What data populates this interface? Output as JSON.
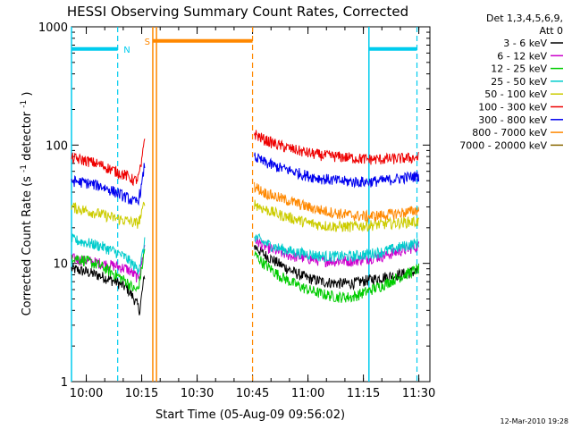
{
  "chart_data": {
    "type": "line",
    "title": "HESSI Observing Summary Count Rates, Corrected",
    "xlabel": "Start Time (05-Aug-09 09:56:02)",
    "ylabel_main": "Corrected Count Rate (s",
    "ylabel_sup1": "-1",
    "ylabel_mid": " detector",
    "ylabel_sup2": "-1",
    "ylabel_end": ")",
    "x_unit": "minutes after 09:56:02 UT",
    "xlim": [
      0,
      97
    ],
    "ylim": [
      1,
      1000
    ],
    "y_scale": "log",
    "x_ticks": [
      {
        "label": "10:00",
        "value": 4
      },
      {
        "label": "10:15",
        "value": 19
      },
      {
        "label": "10:30",
        "value": 34
      },
      {
        "label": "10:45",
        "value": 49
      },
      {
        "label": "11:00",
        "value": 64
      },
      {
        "label": "11:15",
        "value": 79
      },
      {
        "label": "11:30",
        "value": 94
      }
    ],
    "y_ticks": [
      {
        "label": "1",
        "value": 1
      },
      {
        "label": "10",
        "value": 10
      },
      {
        "label": "100",
        "value": 100
      },
      {
        "label": "1000",
        "value": 1000
      }
    ],
    "legend_header": [
      "Det 1,3,4,5,6,9,",
      "Att 0"
    ],
    "legend_position": "right",
    "data_gap": [
      23,
      49
    ],
    "series": [
      {
        "name": "3 - 6 keV",
        "color": "#000000",
        "before": [
          [
            0,
            9.0
          ],
          [
            4,
            8.5
          ],
          [
            8,
            7.8
          ],
          [
            12,
            7.0
          ],
          [
            15,
            6.2
          ],
          [
            17,
            5.0
          ],
          [
            18.5,
            4.0
          ],
          [
            19.2,
            6.0
          ],
          [
            19.8,
            8.0
          ]
        ],
        "after": [
          [
            49.5,
            14.0
          ],
          [
            52,
            12.0
          ],
          [
            56,
            10.0
          ],
          [
            60,
            8.5
          ],
          [
            64,
            7.5
          ],
          [
            68,
            7.0
          ],
          [
            72,
            6.8
          ],
          [
            76,
            6.8
          ],
          [
            80,
            7.2
          ],
          [
            84,
            7.6
          ],
          [
            88,
            8.0
          ],
          [
            92,
            8.4
          ],
          [
            94,
            8.6
          ]
        ]
      },
      {
        "name": "6 - 12 keV",
        "color": "#cc00cc",
        "before": [
          [
            0,
            11.0
          ],
          [
            4,
            10.5
          ],
          [
            8,
            10.0
          ],
          [
            12,
            9.5
          ],
          [
            15,
            9.0
          ],
          [
            17,
            8.0
          ],
          [
            18,
            7.5
          ],
          [
            19,
            10.0
          ],
          [
            19.8,
            14.0
          ]
        ],
        "after": [
          [
            49.5,
            16.0
          ],
          [
            52,
            14.0
          ],
          [
            56,
            12.5
          ],
          [
            60,
            11.5
          ],
          [
            64,
            11.0
          ],
          [
            68,
            10.5
          ],
          [
            72,
            10.5
          ],
          [
            76,
            10.5
          ],
          [
            80,
            11.0
          ],
          [
            84,
            11.5
          ],
          [
            88,
            12.5
          ],
          [
            92,
            13.5
          ],
          [
            94,
            14.0
          ]
        ]
      },
      {
        "name": "12 - 25 keV",
        "color": "#00cc00",
        "before": [
          [
            0,
            11.5
          ],
          [
            4,
            10.5
          ],
          [
            8,
            9.5
          ],
          [
            12,
            8.0
          ],
          [
            15,
            7.0
          ],
          [
            17,
            6.0
          ],
          [
            18,
            6.0
          ],
          [
            19,
            9.0
          ],
          [
            19.8,
            13.0
          ]
        ],
        "after": [
          [
            49.5,
            12.0
          ],
          [
            52,
            10.0
          ],
          [
            56,
            8.0
          ],
          [
            60,
            6.8
          ],
          [
            64,
            6.0
          ],
          [
            68,
            5.5
          ],
          [
            72,
            5.2
          ],
          [
            76,
            5.2
          ],
          [
            80,
            5.8
          ],
          [
            84,
            6.5
          ],
          [
            88,
            7.5
          ],
          [
            92,
            8.5
          ],
          [
            94,
            9.0
          ]
        ]
      },
      {
        "name": "25 - 50 keV",
        "color": "#00cccc",
        "before": [
          [
            0,
            16.0
          ],
          [
            4,
            15.0
          ],
          [
            8,
            14.0
          ],
          [
            12,
            12.5
          ],
          [
            15,
            11.0
          ],
          [
            17,
            9.5
          ],
          [
            18,
            9.0
          ],
          [
            19,
            11.0
          ],
          [
            19.8,
            15.0
          ]
        ],
        "after": [
          [
            49.5,
            17.0
          ],
          [
            52,
            15.0
          ],
          [
            56,
            13.5
          ],
          [
            60,
            12.5
          ],
          [
            64,
            12.0
          ],
          [
            68,
            11.5
          ],
          [
            72,
            11.5
          ],
          [
            76,
            11.5
          ],
          [
            80,
            12.0
          ],
          [
            84,
            12.5
          ],
          [
            88,
            13.5
          ],
          [
            92,
            14.5
          ],
          [
            94,
            15.0
          ]
        ]
      },
      {
        "name": "50 - 100 keV",
        "color": "#cccc00",
        "before": [
          [
            0,
            30.0
          ],
          [
            4,
            28.0
          ],
          [
            8,
            26.0
          ],
          [
            12,
            24.0
          ],
          [
            15,
            23.0
          ],
          [
            17,
            22.0
          ],
          [
            18,
            22.0
          ],
          [
            19,
            26.0
          ],
          [
            19.8,
            34.0
          ]
        ],
        "after": [
          [
            49.5,
            32.0
          ],
          [
            52,
            29.0
          ],
          [
            56,
            26.0
          ],
          [
            60,
            24.0
          ],
          [
            64,
            22.0
          ],
          [
            68,
            21.0
          ],
          [
            72,
            20.5
          ],
          [
            76,
            20.5
          ],
          [
            80,
            21.0
          ],
          [
            84,
            21.5
          ],
          [
            88,
            22.0
          ],
          [
            92,
            22.5
          ],
          [
            94,
            22.5
          ]
        ]
      },
      {
        "name": "100 - 300 keV",
        "color": "#ee0000",
        "before": [
          [
            0,
            78.0
          ],
          [
            4,
            74.0
          ],
          [
            8,
            68.0
          ],
          [
            12,
            60.0
          ],
          [
            15,
            55.0
          ],
          [
            17,
            50.0
          ],
          [
            18,
            52.0
          ],
          [
            19,
            70.0
          ],
          [
            19.8,
            120.0
          ]
        ],
        "after": [
          [
            49.5,
            125.0
          ],
          [
            52,
            112.0
          ],
          [
            56,
            100.0
          ],
          [
            60,
            92.0
          ],
          [
            64,
            86.0
          ],
          [
            68,
            82.0
          ],
          [
            72,
            80.0
          ],
          [
            76,
            78.0
          ],
          [
            80,
            76.0
          ],
          [
            84,
            76.0
          ],
          [
            88,
            77.0
          ],
          [
            92,
            78.0
          ],
          [
            94,
            79.0
          ]
        ]
      },
      {
        "name": "300 - 800 keV",
        "color": "#0000ee",
        "before": [
          [
            0,
            50.0
          ],
          [
            4,
            48.0
          ],
          [
            8,
            45.0
          ],
          [
            12,
            40.0
          ],
          [
            15,
            36.0
          ],
          [
            17,
            33.0
          ],
          [
            18,
            34.0
          ],
          [
            19,
            45.0
          ],
          [
            19.8,
            70.0
          ]
        ],
        "after": [
          [
            49.5,
            80.0
          ],
          [
            52,
            72.0
          ],
          [
            56,
            65.0
          ],
          [
            60,
            60.0
          ],
          [
            64,
            55.0
          ],
          [
            68,
            52.0
          ],
          [
            72,
            50.0
          ],
          [
            76,
            49.0
          ],
          [
            80,
            49.0
          ],
          [
            84,
            50.0
          ],
          [
            88,
            52.0
          ],
          [
            92,
            54.0
          ],
          [
            94,
            55.0
          ]
        ]
      },
      {
        "name": "800 - 7000 keV",
        "color": "#ff8800",
        "before": [],
        "after": [
          [
            49.5,
            45.0
          ],
          [
            52,
            40.0
          ],
          [
            56,
            36.0
          ],
          [
            60,
            33.0
          ],
          [
            64,
            30.0
          ],
          [
            68,
            28.0
          ],
          [
            72,
            26.5
          ],
          [
            76,
            25.5
          ],
          [
            80,
            25.0
          ],
          [
            84,
            25.5
          ],
          [
            88,
            26.5
          ],
          [
            92,
            27.5
          ],
          [
            94,
            28.5
          ]
        ]
      },
      {
        "name": "7000 - 20000 keV",
        "color": "#886600",
        "before": [],
        "after": []
      }
    ],
    "flags": [
      {
        "label": "N",
        "color": "#00ccee",
        "level": 650,
        "dashed_lines": [
          12.5,
          93.5
        ],
        "solid_lines": [
          0,
          80.5
        ],
        "segments": [
          [
            0,
            12.5
          ],
          [
            80.5,
            93.5
          ]
        ]
      },
      {
        "label": "S",
        "color": "#ff8800",
        "level": 760,
        "dashed_lines": [
          49
        ],
        "solid_lines": [
          22,
          23
        ],
        "segments": [
          [
            22,
            49
          ]
        ]
      }
    ]
  },
  "timestamp": "12-Mar-2010 19:28"
}
